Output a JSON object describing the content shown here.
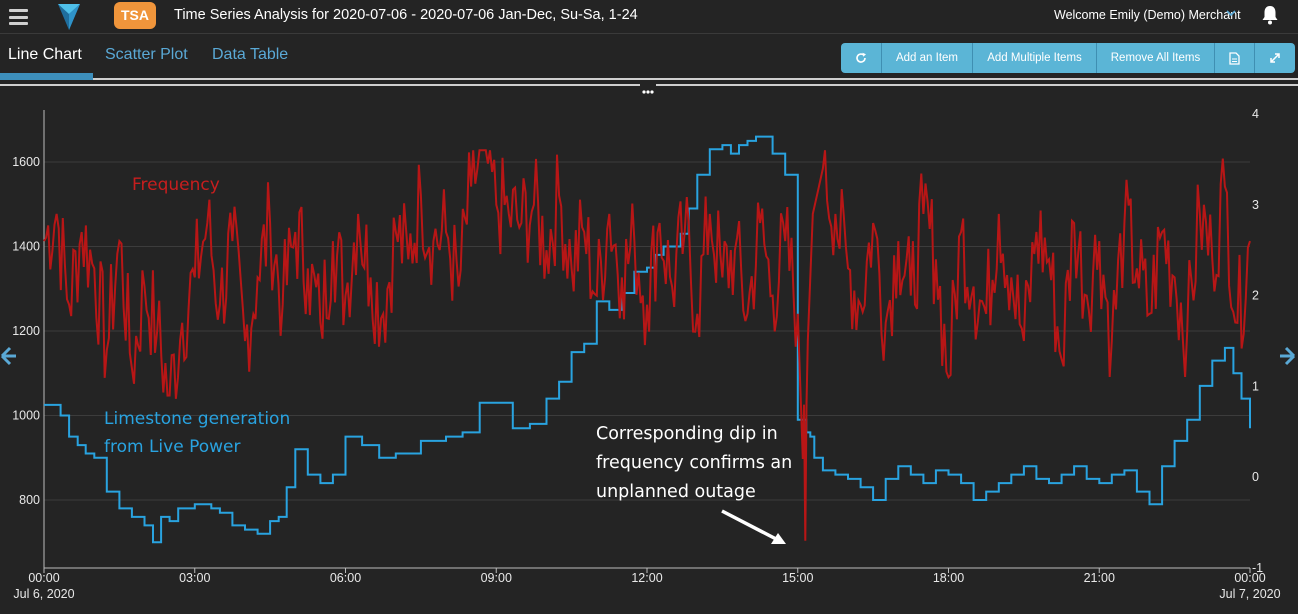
{
  "header": {
    "badge": "TSA",
    "title": "Time Series Analysis for 2020-07-06 - 2020-07-06 Jan-Dec, Su-Sa, 1-24",
    "welcome": "Welcome Emily (Demo) Merchant",
    "icons": [
      "menu-icon",
      "logo-icon",
      "chevron-down-icon",
      "bell-icon"
    ]
  },
  "tabs": [
    {
      "label": "Line Chart",
      "active": true
    },
    {
      "label": "Scatter Plot",
      "active": false
    },
    {
      "label": "Data Table",
      "active": false
    }
  ],
  "toolbar": {
    "refresh_icon": "refresh-icon",
    "add_item": "Add an Item",
    "add_multiple": "Add Multiple Items",
    "remove_all": "Remove All Items",
    "export_icon": "document-icon",
    "expand_icon": "expand-icon"
  },
  "colors": {
    "accent": "#5bb5d6",
    "badge": "#f0953b",
    "frequency_series": "#c81e1e",
    "generation_series": "#29a3e0",
    "background": "#242424"
  },
  "nav": {
    "left_arrow": "arrow-left-icon",
    "right_arrow": "arrow-right-icon"
  },
  "chart_data": {
    "type": "line",
    "grid": "horizontal",
    "x_ticks": [
      {
        "time": "00:00",
        "date": "Jul 6, 2020"
      },
      {
        "time": "03:00",
        "date": ""
      },
      {
        "time": "06:00",
        "date": ""
      },
      {
        "time": "09:00",
        "date": ""
      },
      {
        "time": "12:00",
        "date": ""
      },
      {
        "time": "15:00",
        "date": ""
      },
      {
        "time": "18:00",
        "date": ""
      },
      {
        "time": "21:00",
        "date": ""
      },
      {
        "time": "00:00",
        "date": "Jul 7, 2020"
      }
    ],
    "y_left_ticks": [
      "800",
      "1000",
      "1200",
      "1400",
      "1600"
    ],
    "y_left_range": [
      700,
      1700
    ],
    "y_right_ticks": [
      "-1",
      "0",
      "1",
      "2",
      "3",
      "4"
    ],
    "y_right_range": [
      -1,
      4
    ],
    "annotations": {
      "frequency": "Frequency",
      "generation_line1": "Limestone generation",
      "generation_line2": "from Live Power",
      "outage_line1": "Corresponding dip in",
      "outage_line2": "frequency confirms an",
      "outage_line3": "unplanned outage"
    },
    "series": [
      {
        "name": "Limestone generation from Live Power",
        "axis": "left",
        "step": true,
        "x_hours": [
          0.0,
          0.33,
          0.5,
          0.67,
          0.83,
          1.0,
          1.25,
          1.5,
          1.75,
          2.0,
          2.17,
          2.33,
          2.5,
          2.67,
          3.0,
          3.33,
          3.5,
          3.75,
          4.0,
          4.25,
          4.5,
          4.67,
          4.83,
          5.0,
          5.25,
          5.5,
          5.75,
          6.0,
          6.33,
          6.67,
          7.0,
          7.5,
          8.0,
          8.33,
          8.67,
          9.0,
          9.33,
          9.67,
          10.0,
          10.25,
          10.5,
          10.75,
          11.0,
          11.25,
          11.5,
          11.75,
          12.0,
          12.17,
          12.33,
          12.5,
          12.67,
          12.83,
          13.0,
          13.25,
          13.5,
          13.67,
          13.83,
          14.0,
          14.17,
          14.5,
          14.75,
          15.0,
          15.17,
          15.25,
          15.33,
          15.5,
          15.75,
          16.0,
          16.25,
          16.5,
          16.75,
          17.0,
          17.25,
          17.5,
          17.75,
          18.0,
          18.25,
          18.5,
          18.75,
          19.0,
          19.25,
          19.5,
          19.75,
          20.0,
          20.25,
          20.5,
          20.75,
          21.0,
          21.25,
          21.5,
          21.75,
          22.0,
          22.25,
          22.5,
          22.75,
          23.0,
          23.25,
          23.5,
          23.67,
          23.83,
          24.0
        ],
        "values": [
          1025,
          1000,
          950,
          930,
          910,
          900,
          820,
          780,
          760,
          740,
          700,
          760,
          750,
          780,
          790,
          780,
          770,
          740,
          730,
          720,
          750,
          760,
          830,
          920,
          860,
          840,
          860,
          950,
          930,
          900,
          910,
          940,
          950,
          960,
          1030,
          1030,
          970,
          980,
          1040,
          1080,
          1150,
          1170,
          1270,
          1250,
          1290,
          1340,
          1350,
          1380,
          1400,
          1400,
          1430,
          1490,
          1570,
          1630,
          1640,
          1620,
          1640,
          1650,
          1660,
          1620,
          1570,
          990,
          960,
          950,
          900,
          870,
          860,
          850,
          830,
          800,
          850,
          880,
          860,
          840,
          870,
          860,
          840,
          800,
          820,
          840,
          860,
          880,
          850,
          840,
          860,
          880,
          850,
          840,
          860,
          870,
          820,
          790,
          880,
          940,
          990,
          1070,
          1130,
          1160,
          1100,
          1040,
          970
        ]
      },
      {
        "name": "Frequency",
        "axis": "right",
        "step": false,
        "x_hours": [
          0.0,
          0.25,
          0.5,
          0.75,
          1.0,
          1.25,
          1.5,
          1.75,
          2.0,
          2.25,
          2.5,
          2.75,
          3.0,
          3.25,
          3.5,
          3.75,
          4.0,
          4.25,
          4.5,
          4.75,
          5.0,
          5.25,
          5.5,
          5.75,
          6.0,
          6.25,
          6.5,
          6.75,
          7.0,
          7.25,
          7.5,
          7.75,
          8.0,
          8.25,
          8.5,
          8.75,
          9.0,
          9.25,
          9.5,
          9.75,
          10.0,
          10.25,
          10.5,
          10.75,
          11.0,
          11.25,
          11.5,
          11.75,
          12.0,
          12.25,
          12.5,
          12.75,
          13.0,
          13.25,
          13.5,
          13.75,
          14.0,
          14.25,
          14.5,
          14.75,
          15.0,
          15.1,
          15.15,
          15.2,
          15.3,
          15.5,
          15.75,
          16.0,
          16.25,
          16.5,
          16.75,
          17.0,
          17.25,
          17.5,
          17.75,
          18.0,
          18.25,
          18.5,
          18.75,
          19.0,
          19.25,
          19.5,
          19.75,
          20.0,
          20.25,
          20.5,
          20.75,
          21.0,
          21.25,
          21.5,
          21.75,
          22.0,
          22.25,
          22.5,
          22.75,
          23.0,
          23.25,
          23.5,
          23.75,
          24.0
        ],
        "values": [
          2.6,
          2.9,
          1.9,
          2.7,
          2.3,
          1.4,
          2.6,
          1.2,
          2.1,
          1.6,
          0.9,
          1.7,
          2.2,
          2.8,
          1.9,
          2.6,
          1.5,
          2.2,
          2.8,
          1.9,
          2.7,
          2.3,
          1.7,
          2.6,
          2.0,
          2.9,
          2.2,
          1.8,
          2.7,
          2.4,
          3.1,
          2.6,
          2.7,
          2.1,
          3.2,
          3.6,
          3.0,
          2.9,
          2.8,
          3.0,
          2.5,
          3.1,
          2.3,
          2.7,
          2.0,
          2.9,
          2.2,
          2.6,
          1.9,
          2.8,
          2.1,
          2.7,
          1.8,
          2.9,
          2.2,
          2.5,
          1.8,
          2.8,
          2.0,
          2.6,
          1.8,
          0.2,
          -0.7,
          1.5,
          2.9,
          3.4,
          2.9,
          2.3,
          1.9,
          2.8,
          1.7,
          2.6,
          2.0,
          2.9,
          2.4,
          1.1,
          2.7,
          2.1,
          1.8,
          2.9,
          2.2,
          1.5,
          2.7,
          2.4,
          1.3,
          2.8,
          2.0,
          2.6,
          1.5,
          2.8,
          2.3,
          1.8,
          2.7,
          2.2,
          1.6,
          2.9,
          2.4,
          3.2,
          1.7,
          2.6
        ]
      }
    ]
  }
}
